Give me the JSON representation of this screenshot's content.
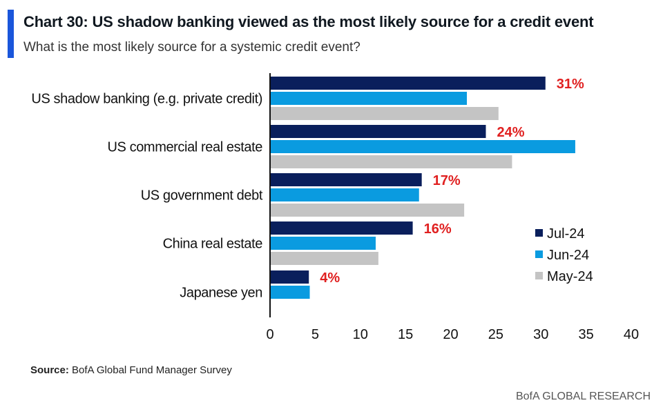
{
  "header": {
    "title": "Chart 30: US shadow banking viewed as the most likely source for a credit event",
    "subtitle": "What is the most likely source for a systemic credit event?"
  },
  "chart_data": {
    "type": "bar",
    "orientation": "horizontal",
    "categories": [
      "US shadow banking (e.g. private credit)",
      "US commercial real estate",
      "US government debt",
      "China real estate",
      "Japanese yen"
    ],
    "series": [
      {
        "name": "Jul-24",
        "color": "#0a1f5c",
        "values": [
          30.5,
          23.9,
          16.8,
          15.8,
          4.3
        ]
      },
      {
        "name": "Jun-24",
        "color": "#0a9be0",
        "values": [
          21.8,
          33.8,
          16.5,
          11.7,
          4.4
        ]
      },
      {
        "name": "May-24",
        "color": "#c4c4c4",
        "values": [
          25.3,
          26.8,
          21.5,
          12.0,
          null
        ]
      }
    ],
    "data_labels": [
      "31%",
      "24%",
      "17%",
      "16%",
      "4%"
    ],
    "data_label_color": "#e02020",
    "xlim": [
      0,
      40
    ],
    "xticks": [
      "0",
      "5",
      "10",
      "15",
      "20",
      "25",
      "30",
      "35",
      "40"
    ],
    "legend_position": "right",
    "grid": false
  },
  "source": {
    "label": "Source:",
    "text": "BofA Global Fund Manager Survey"
  },
  "footer": {
    "brand": "BofA GLOBAL RESEARCH"
  }
}
